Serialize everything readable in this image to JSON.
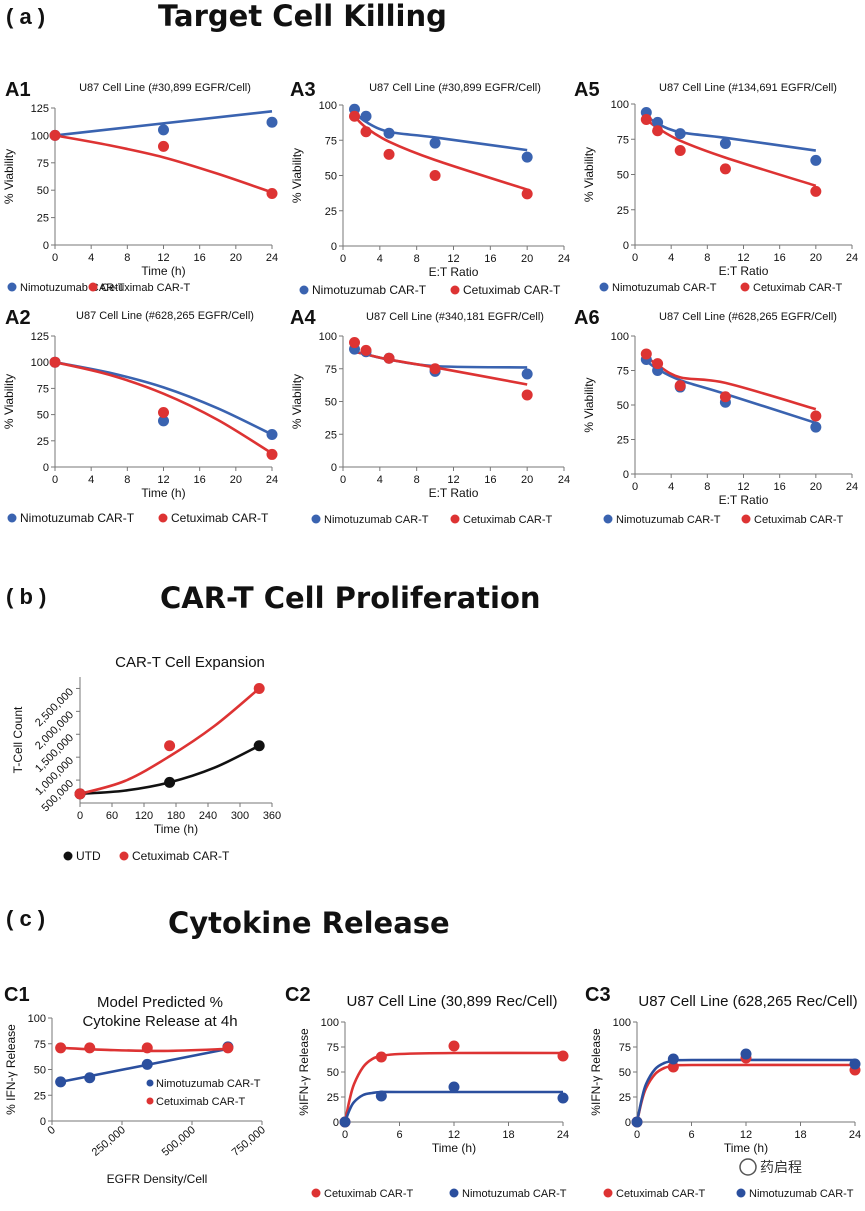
{
  "colors": {
    "blue": "#3a63b0",
    "red": "#dd3333",
    "black": "#111111",
    "fitBlue": "#2b4f9e",
    "fitRed": "#d42a2a"
  },
  "sections": {
    "a": {
      "label": "( a )",
      "title": "Target Cell Killing"
    },
    "b": {
      "label": "( b )",
      "title": "CAR-T Cell Proliferation"
    },
    "c": {
      "label": "( c )",
      "title": "Cytokine Release"
    }
  },
  "watermark": "药启程",
  "chart_data": [
    {
      "id": "A1",
      "panel": "A1",
      "type": "scatter",
      "title": "U87 Cell Line (#30,899 EGFR/Cell)",
      "xlabel": "Time (h)",
      "ylabel": "% Viability",
      "xlim": [
        0,
        24
      ],
      "xticks": [
        0,
        4,
        8,
        12,
        16,
        20,
        24
      ],
      "ylim": [
        0,
        125
      ],
      "yticks": [
        0,
        25,
        50,
        75,
        100,
        125
      ],
      "series": [
        {
          "name": "Nimotuzumab CAR-T",
          "color": "blue",
          "x": [
            0,
            12,
            24
          ],
          "y": [
            100,
            105,
            112
          ],
          "fit": [
            [
              0,
              100
            ],
            [
              24,
              122
            ]
          ]
        },
        {
          "name": "Cetuximab CAR-T",
          "color": "red",
          "x": [
            0,
            12,
            24
          ],
          "y": [
            100,
            90,
            47
          ],
          "fit": [
            [
              0,
              100
            ],
            [
              6,
              91
            ],
            [
              12,
              80
            ],
            [
              18,
              65
            ],
            [
              24,
              48
            ]
          ]
        }
      ]
    },
    {
      "id": "A3",
      "panel": "A3",
      "type": "scatter",
      "title": "U87 Cell Line (#30,899 EGFR/Cell)",
      "xlabel": "E:T Ratio",
      "ylabel": "% Viability",
      "xlim": [
        0,
        24
      ],
      "xticks": [
        0,
        4,
        8,
        12,
        16,
        20,
        24
      ],
      "ylim": [
        0,
        100
      ],
      "yticks": [
        0,
        25,
        50,
        75,
        100
      ],
      "series": [
        {
          "name": "Nimotuzumab CAR-T",
          "color": "blue",
          "x": [
            1.25,
            2.5,
            5,
            10,
            20
          ],
          "y": [
            97,
            92,
            80,
            73,
            63
          ],
          "fit": [
            [
              1.25,
              95
            ],
            [
              2.5,
              88
            ],
            [
              5,
              81
            ],
            [
              10,
              77
            ],
            [
              20,
              68
            ]
          ]
        },
        {
          "name": "Cetuximab CAR-T",
          "color": "red",
          "x": [
            1.25,
            2.5,
            5,
            10,
            20
          ],
          "y": [
            92,
            81,
            65,
            50,
            37
          ],
          "fit": [
            [
              1.25,
              92
            ],
            [
              2.5,
              84
            ],
            [
              5,
              74
            ],
            [
              10,
              61
            ],
            [
              20,
              40
            ]
          ]
        }
      ]
    },
    {
      "id": "A5",
      "panel": "A5",
      "type": "scatter",
      "title": "U87 Cell Line (#134,691 EGFR/Cell)",
      "xlabel": "E:T Ratio",
      "ylabel": "% Viability",
      "xlim": [
        0,
        24
      ],
      "xticks": [
        0,
        4,
        8,
        12,
        16,
        20,
        24
      ],
      "ylim": [
        0,
        100
      ],
      "yticks": [
        0,
        25,
        50,
        75,
        100
      ],
      "series": [
        {
          "name": "Nimotuzumab CAR-T",
          "color": "blue",
          "x": [
            1.25,
            2.5,
            5,
            10,
            20
          ],
          "y": [
            94,
            87,
            79,
            72,
            60
          ],
          "fit": [
            [
              1.25,
              92
            ],
            [
              2.5,
              86
            ],
            [
              5,
              80
            ],
            [
              10,
              76
            ],
            [
              20,
              67
            ]
          ]
        },
        {
          "name": "Cetuximab CAR-T",
          "color": "red",
          "x": [
            1.25,
            2.5,
            5,
            10,
            20
          ],
          "y": [
            89,
            81,
            67,
            54,
            38
          ],
          "fit": [
            [
              1.25,
              89
            ],
            [
              2.5,
              83
            ],
            [
              5,
              74
            ],
            [
              10,
              62
            ],
            [
              20,
              42
            ]
          ]
        }
      ]
    },
    {
      "id": "A2",
      "panel": "A2",
      "type": "scatter",
      "title": "U87 Cell Line (#628,265 EGFR/Cell)",
      "xlabel": "Time (h)",
      "ylabel": "% Viability",
      "xlim": [
        0,
        24
      ],
      "xticks": [
        0,
        4,
        8,
        12,
        16,
        20,
        24
      ],
      "ylim": [
        0,
        125
      ],
      "yticks": [
        0,
        25,
        50,
        75,
        100,
        125
      ],
      "series": [
        {
          "name": "Nimotuzumab CAR-T",
          "color": "blue",
          "x": [
            0,
            12,
            24
          ],
          "y": [
            100,
            44,
            31
          ],
          "fit": [
            [
              0,
              100
            ],
            [
              6,
              90
            ],
            [
              12,
              76
            ],
            [
              18,
              56
            ],
            [
              24,
              31
            ]
          ]
        },
        {
          "name": "Cetuximab CAR-T",
          "color": "red",
          "x": [
            0,
            12,
            24
          ],
          "y": [
            100,
            52,
            12
          ],
          "fit": [
            [
              0,
              100
            ],
            [
              6,
              88
            ],
            [
              12,
              70
            ],
            [
              18,
              45
            ],
            [
              24,
              13
            ]
          ]
        }
      ]
    },
    {
      "id": "A4",
      "panel": "A4",
      "type": "scatter",
      "title": "U87 Cell Line (#340,181 EGFR/Cell)",
      "xlabel": "E:T Ratio",
      "ylabel": "% Viability",
      "xlim": [
        0,
        24
      ],
      "xticks": [
        0,
        4,
        8,
        12,
        16,
        20,
        24
      ],
      "ylim": [
        0,
        100
      ],
      "yticks": [
        0,
        25,
        50,
        75,
        100
      ],
      "series": [
        {
          "name": "Nimotuzumab CAR-T",
          "color": "blue",
          "x": [
            1.25,
            2.5,
            5,
            10,
            20
          ],
          "y": [
            90,
            88,
            83,
            73,
            71
          ],
          "fit": [
            [
              1.25,
              88
            ],
            [
              2.5,
              86
            ],
            [
              5,
              82
            ],
            [
              10,
              77
            ],
            [
              20,
              76
            ]
          ]
        },
        {
          "name": "Cetuximab CAR-T",
          "color": "red",
          "x": [
            1.25,
            2.5,
            5,
            10,
            20
          ],
          "y": [
            95,
            89,
            83,
            75,
            55
          ],
          "fit": [
            [
              1.25,
              88
            ],
            [
              2.5,
              86
            ],
            [
              5,
              82
            ],
            [
              10,
              76
            ],
            [
              20,
              63
            ]
          ]
        }
      ]
    },
    {
      "id": "A6",
      "panel": "A6",
      "type": "scatter",
      "title": "U87 Cell Line (#628,265 EGFR/Cell)",
      "xlabel": "E:T Ratio",
      "ylabel": "% Viability",
      "xlim": [
        0,
        24
      ],
      "xticks": [
        0,
        4,
        8,
        12,
        16,
        20,
        24
      ],
      "ylim": [
        0,
        100
      ],
      "yticks": [
        0,
        25,
        50,
        75,
        100
      ],
      "series": [
        {
          "name": "Nimotuzumab CAR-T",
          "color": "blue",
          "x": [
            1.25,
            2.5,
            5,
            10,
            20
          ],
          "y": [
            83,
            75,
            63,
            52,
            34
          ],
          "fit": [
            [
              1.25,
              82
            ],
            [
              2.5,
              76
            ],
            [
              5,
              68
            ],
            [
              10,
              58
            ],
            [
              20,
              37
            ]
          ]
        },
        {
          "name": "Cetuximab CAR-T",
          "color": "red",
          "x": [
            1.25,
            2.5,
            5,
            10,
            20
          ],
          "y": [
            87,
            80,
            64,
            56,
            42
          ],
          "fit": [
            [
              1.25,
              85
            ],
            [
              2.5,
              79
            ],
            [
              5,
              70
            ],
            [
              10,
              66
            ],
            [
              20,
              47
            ]
          ]
        }
      ]
    },
    {
      "id": "B",
      "panel": "",
      "type": "scatter",
      "title": "CAR-T Cell Expansion",
      "xlabel": "Time (h)",
      "ylabel": "T-Cell Count",
      "xlim": [
        0,
        360
      ],
      "xticks": [
        0,
        60,
        120,
        180,
        240,
        300,
        360
      ],
      "ylim": [
        0,
        2750000
      ],
      "yticks": [
        500000,
        1000000,
        1500000,
        2000000,
        2500000
      ],
      "ytick_labels": [
        "500,000",
        "1,000,000",
        "1,500,000",
        "2,000,000",
        "2,500,000"
      ],
      "series": [
        {
          "name": "UTD",
          "color": "black",
          "x": [
            0,
            168,
            336
          ],
          "y": [
            200000,
            450000,
            1250000
          ],
          "fit": [
            [
              0,
              200000
            ],
            [
              84,
              270000
            ],
            [
              168,
              450000
            ],
            [
              252,
              770000
            ],
            [
              336,
              1250000
            ]
          ]
        },
        {
          "name": "Cetuximab CAR-T",
          "color": "red",
          "x": [
            0,
            168,
            336
          ],
          "y": [
            200000,
            1250000,
            2500000
          ],
          "fit": [
            [
              0,
              200000
            ],
            [
              84,
              480000
            ],
            [
              168,
              1020000
            ],
            [
              252,
              1680000
            ],
            [
              336,
              2500000
            ]
          ]
        }
      ]
    },
    {
      "id": "C1",
      "panel": "C1",
      "type": "scatter",
      "title": "Model Predicted % Cytokine Release at 4h",
      "title_lines": [
        "Model Predicted %",
        "Cytokine Release at 4h"
      ],
      "xlabel": "EGFR Density/Cell",
      "ylabel": "% IFN-γ Release",
      "xlim": [
        0,
        750000
      ],
      "xticks": [
        0,
        250000,
        500000,
        750000
      ],
      "xtick_labels": [
        "0",
        "250,000",
        "500,000",
        "750,000"
      ],
      "ylim": [
        0,
        100
      ],
      "yticks": [
        0,
        25,
        50,
        75,
        100
      ],
      "series": [
        {
          "name": "Nimotuzumab CAR-T",
          "color": "fitBlue",
          "x": [
            30899,
            134691,
            340181,
            628265
          ],
          "y": [
            38,
            42,
            55,
            72
          ],
          "fit": [
            [
              30899,
              38
            ],
            [
              628265,
              70
            ]
          ]
        },
        {
          "name": "Cetuximab CAR-T",
          "color": "red",
          "x": [
            30899,
            134691,
            340181,
            628265
          ],
          "y": [
            71,
            71,
            71,
            71
          ],
          "fit": [
            [
              30899,
              71
            ],
            [
              200000,
              69
            ],
            [
              400000,
              68
            ],
            [
              628265,
              70
            ]
          ]
        }
      ]
    },
    {
      "id": "C2",
      "panel": "C2",
      "type": "scatter",
      "title": "U87 Cell Line (30,899 Rec/Cell)",
      "xlabel": "Time (h)",
      "ylabel": "%IFN-γ Release",
      "xlim": [
        0,
        24
      ],
      "xticks": [
        0,
        6,
        12,
        18,
        24
      ],
      "ylim": [
        0,
        100
      ],
      "yticks": [
        0,
        25,
        50,
        75,
        100
      ],
      "series": [
        {
          "name": "Cetuximab CAR-T",
          "color": "red",
          "x": [
            0,
            4,
            12,
            24
          ],
          "y": [
            0,
            65,
            76,
            66
          ],
          "fit": [
            [
              0,
              0
            ],
            [
              0.5,
              22
            ],
            [
              1,
              38
            ],
            [
              2,
              55
            ],
            [
              3,
              63
            ],
            [
              4,
              66
            ],
            [
              6,
              68
            ],
            [
              12,
              69
            ],
            [
              24,
              69
            ]
          ]
        },
        {
          "name": "Nimotuzumab CAR-T",
          "color": "fitBlue",
          "x": [
            0,
            4,
            12,
            24
          ],
          "y": [
            0,
            26,
            35,
            24
          ],
          "fit": [
            [
              0,
              0
            ],
            [
              0.5,
              12
            ],
            [
              1,
              20
            ],
            [
              2,
              27
            ],
            [
              3,
              29
            ],
            [
              4,
              30
            ],
            [
              6,
              30
            ],
            [
              24,
              30
            ]
          ]
        }
      ]
    },
    {
      "id": "C3",
      "panel": "C3",
      "type": "scatter",
      "title": "U87 Cell Line (628,265 Rec/Cell)",
      "xlabel": "Time (h)",
      "ylabel": "%IFN-γ Release",
      "xlim": [
        0,
        24
      ],
      "xticks": [
        0,
        6,
        12,
        18,
        24
      ],
      "xtick_labels": [
        "0",
        "6",
        "12",
        "18",
        "24"
      ],
      "ylim": [
        0,
        100
      ],
      "yticks": [
        0,
        25,
        50,
        75,
        100
      ],
      "series": [
        {
          "name": "Cetuximab CAR-T",
          "color": "red",
          "x": [
            0,
            4,
            12,
            24
          ],
          "y": [
            0,
            55,
            64,
            52
          ],
          "fit": [
            [
              0,
              0
            ],
            [
              0.5,
              20
            ],
            [
              1,
              34
            ],
            [
              2,
              48
            ],
            [
              3,
              54
            ],
            [
              4,
              56
            ],
            [
              6,
              57
            ],
            [
              24,
              57
            ]
          ]
        },
        {
          "name": "Nimotuzumab CAR-T",
          "color": "fitBlue",
          "x": [
            0,
            4,
            12,
            24
          ],
          "y": [
            0,
            63,
            68,
            58
          ],
          "fit": [
            [
              0,
              0
            ],
            [
              0.5,
              22
            ],
            [
              1,
              38
            ],
            [
              2,
              53
            ],
            [
              3,
              59
            ],
            [
              4,
              61
            ],
            [
              6,
              62
            ],
            [
              24,
              62
            ]
          ]
        }
      ]
    }
  ]
}
